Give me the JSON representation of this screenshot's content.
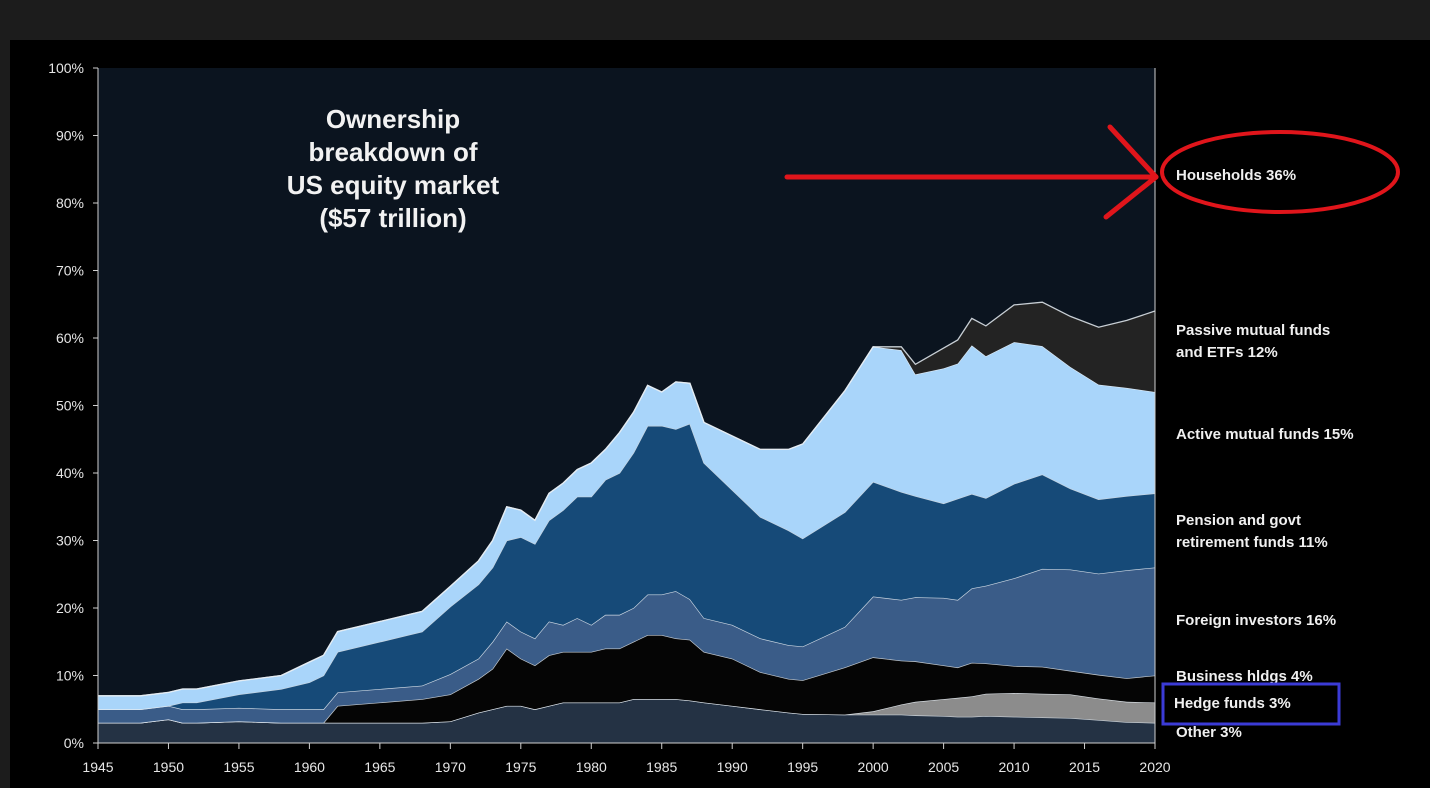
{
  "chart_data": {
    "type": "area",
    "title": [
      "Ownership",
      "breakdown  of",
      "US equity market",
      "($57 trillion)"
    ],
    "xlim": [
      1945,
      2020
    ],
    "ylim": [
      0,
      100
    ],
    "x_ticks": [
      "1945",
      "1950",
      "1955",
      "1960",
      "1965",
      "1970",
      "1975",
      "1980",
      "1985",
      "1990",
      "1995",
      "2000",
      "2005",
      "2010",
      "2015",
      "2020"
    ],
    "y_ticks": [
      "0%",
      "10%",
      "20%",
      "30%",
      "40%",
      "50%",
      "60%",
      "70%",
      "80%",
      "90%",
      "100%"
    ],
    "grid": false,
    "x": [
      1945,
      1948,
      1950,
      1951,
      1952,
      1955,
      1958,
      1960,
      1961,
      1962,
      1965,
      1968,
      1970,
      1972,
      1973,
      1974,
      1975,
      1976,
      1977,
      1978,
      1979,
      1980,
      1981,
      1982,
      1983,
      1984,
      1985,
      1986,
      1987,
      1988,
      1990,
      1992,
      1994,
      1995,
      1998,
      2000,
      2002,
      2003,
      2005,
      2006,
      2007,
      2008,
      2010,
      2012,
      2014,
      2016,
      2018,
      2020
    ],
    "series": [
      {
        "name": "Other 3%",
        "color": "#243244",
        "values": [
          3,
          3,
          3.5,
          3,
          3,
          3.2,
          3,
          3,
          3,
          3,
          3,
          3,
          3.2,
          4.5,
          5,
          5.5,
          5.5,
          5,
          5.5,
          6,
          6,
          6,
          6,
          6,
          6.5,
          6.5,
          6.5,
          6.5,
          6.3,
          6,
          5.5,
          5,
          4.5,
          4.3,
          4.2,
          4.2,
          4.2,
          4.1,
          4,
          3.9,
          3.9,
          4,
          3.9,
          3.8,
          3.7,
          3.4,
          3.1,
          3
        ]
      },
      {
        "name": "Hedge funds 3%",
        "color": "#8c8c8c",
        "values": [
          0,
          0,
          0,
          0,
          0,
          0,
          0,
          0,
          0,
          0,
          0,
          0,
          0,
          0,
          0,
          0,
          0,
          0,
          0,
          0,
          0,
          0,
          0,
          0,
          0,
          0,
          0,
          0,
          0,
          0,
          0,
          0,
          0,
          0,
          0,
          0.5,
          1.5,
          2,
          2.5,
          2.8,
          3,
          3.3,
          3.5,
          3.5,
          3.5,
          3.2,
          3,
          3
        ]
      },
      {
        "name": "Business hldgs 4%",
        "color": "#050505",
        "values": [
          0,
          0,
          0,
          0,
          0,
          0,
          0,
          0,
          0,
          2.5,
          3,
          3.5,
          4,
          5,
          6,
          8.5,
          7,
          6.5,
          7.5,
          7.5,
          7.5,
          7.5,
          8,
          8,
          8.5,
          9.5,
          9.5,
          9,
          9,
          7.5,
          7,
          5.5,
          5,
          5,
          7,
          8,
          6.5,
          6,
          5,
          4.5,
          5,
          4.5,
          4,
          4,
          3.5,
          3.5,
          3.5,
          4
        ]
      },
      {
        "name": "Foreign investors 16%",
        "color": "#3a5c88",
        "values": [
          2,
          2,
          2,
          2,
          2,
          2,
          2,
          2,
          2,
          2,
          2,
          2,
          3,
          3,
          4,
          4,
          4,
          4,
          5,
          4,
          5,
          4,
          5,
          5,
          5,
          6,
          6,
          7,
          6,
          5,
          5,
          5,
          5,
          5,
          6,
          9,
          9,
          9.5,
          10,
          10,
          11,
          11.5,
          13,
          14.5,
          15,
          15,
          16,
          16
        ]
      },
      {
        "name": "Pension and govt retirement funds 11%",
        "color": "#164a78",
        "values": [
          0,
          0,
          0,
          1,
          1,
          2,
          3,
          4,
          5,
          6,
          7,
          8,
          10,
          11,
          11,
          12,
          14,
          14,
          15,
          17,
          18,
          19,
          20,
          21,
          23,
          25,
          25,
          24,
          26,
          23,
          20,
          18,
          17,
          16,
          17,
          17,
          16,
          15,
          14,
          15,
          14,
          13,
          14,
          14,
          12,
          11,
          11,
          11
        ]
      },
      {
        "name": "Active mutual funds 15%",
        "color": "#a9d5fa",
        "values": [
          2,
          2,
          2,
          2,
          2,
          2,
          2,
          3,
          3,
          3,
          3,
          3,
          3,
          3.5,
          4,
          5,
          4,
          3.5,
          4,
          4,
          4,
          5,
          4.5,
          6,
          6,
          6,
          5,
          7,
          6,
          6,
          8,
          10,
          12,
          14,
          18,
          20,
          21,
          18,
          20,
          20,
          22,
          21,
          21,
          19,
          18,
          17,
          16,
          15
        ]
      },
      {
        "name": "Passive mutual funds and ETFs 12%",
        "color": "#232323",
        "values": [
          0,
          0,
          0,
          0,
          0,
          0,
          0,
          0,
          0,
          0,
          0,
          0,
          0,
          0,
          0,
          0,
          0,
          0,
          0,
          0,
          0,
          0,
          0,
          0,
          0,
          0,
          0,
          0,
          0,
          0,
          0,
          0,
          0,
          0,
          0,
          0,
          0.5,
          1.5,
          3,
          3.5,
          4,
          4.5,
          5.5,
          6.5,
          7.5,
          8.5,
          10,
          12
        ]
      }
    ],
    "right_labels": [
      [
        "Households  36%"
      ],
      [
        "Passive mutual funds",
        "and ETFs  12%"
      ],
      [
        "Active mutual funds  15%"
      ],
      [
        "Pension and govt",
        "retirement funds  11%"
      ],
      [
        "Foreign  investors  16%"
      ],
      [
        "Business hldgs  4%"
      ],
      [
        "Hedge funds  3%"
      ],
      [
        "Other  3%"
      ]
    ]
  },
  "colors": {
    "background": "#000000",
    "plot_background": "#0b141f",
    "annotation_red": "#e0151b",
    "annotation_blue": "#3b3bd6"
  }
}
